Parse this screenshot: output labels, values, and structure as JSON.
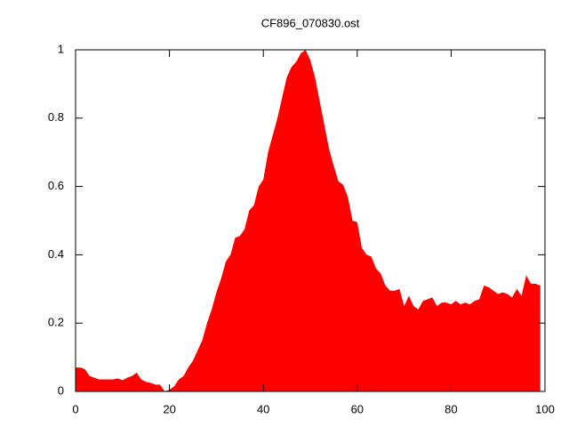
{
  "chart_data": {
    "type": "area",
    "title": "CF896_070830.ost",
    "color": "#ff0000",
    "x": [
      0,
      1,
      2,
      3,
      4,
      5,
      6,
      7,
      8,
      9,
      10,
      11,
      12,
      13,
      14,
      15,
      16,
      17,
      18,
      19,
      20,
      21,
      22,
      23,
      24,
      25,
      26,
      27,
      28,
      29,
      30,
      31,
      32,
      33,
      34,
      35,
      36,
      37,
      38,
      39,
      40,
      41,
      42,
      43,
      44,
      45,
      46,
      47,
      48,
      49,
      50,
      51,
      52,
      53,
      54,
      55,
      56,
      57,
      58,
      59,
      60,
      61,
      62,
      63,
      64,
      65,
      66,
      67,
      68,
      69,
      70,
      71,
      72,
      73,
      74,
      75,
      76,
      77,
      78,
      79,
      80,
      81,
      82,
      83,
      84,
      85,
      86,
      87,
      88,
      89,
      90,
      91,
      92,
      93,
      94,
      95,
      96,
      97,
      98,
      99
    ],
    "values": [
      0.07,
      0.07,
      0.065,
      0.045,
      0.04,
      0.035,
      0.035,
      0.035,
      0.035,
      0.038,
      0.033,
      0.04,
      0.045,
      0.055,
      0.035,
      0.028,
      0.025,
      0.02,
      0.02,
      0.0,
      0.005,
      0.015,
      0.035,
      0.045,
      0.07,
      0.09,
      0.12,
      0.15,
      0.2,
      0.24,
      0.29,
      0.33,
      0.38,
      0.4,
      0.45,
      0.455,
      0.475,
      0.53,
      0.545,
      0.6,
      0.62,
      0.7,
      0.75,
      0.8,
      0.86,
      0.92,
      0.95,
      0.965,
      0.99,
      1.0,
      0.97,
      0.92,
      0.85,
      0.78,
      0.71,
      0.66,
      0.615,
      0.605,
      0.57,
      0.5,
      0.495,
      0.42,
      0.4,
      0.395,
      0.36,
      0.345,
      0.31,
      0.295,
      0.295,
      0.3,
      0.25,
      0.28,
      0.25,
      0.24,
      0.265,
      0.27,
      0.275,
      0.25,
      0.26,
      0.26,
      0.255,
      0.265,
      0.255,
      0.26,
      0.255,
      0.265,
      0.27,
      0.31,
      0.305,
      0.295,
      0.285,
      0.29,
      0.285,
      0.275,
      0.3,
      0.28,
      0.34,
      0.315,
      0.315,
      0.31
    ],
    "xlim": [
      0,
      100
    ],
    "xticks": [
      0,
      20,
      40,
      60,
      80,
      100
    ],
    "ylim": [
      0,
      1
    ],
    "yticks": [
      0,
      0.2,
      0.4,
      0.6,
      0.8,
      1
    ]
  }
}
